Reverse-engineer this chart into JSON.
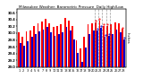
{
  "title": "Milwaukee Weather: Barometric Pressure  Daily High/Low",
  "title_fontsize": 3.0,
  "ylabel_fontsize": 2.8,
  "xlabel_fontsize": 2.5,
  "ylabel": "Inches",
  "background_color": "#ffffff",
  "bar_color_high": "#ff0000",
  "bar_color_low": "#0000cc",
  "days": [
    "1",
    "2",
    "3",
    "4",
    "5",
    "6",
    "7",
    "8",
    "9",
    "10",
    "11",
    "12",
    "13",
    "14",
    "15",
    "16",
    "17",
    "18",
    "19",
    "20",
    "21",
    "22",
    "23",
    "24",
    "25",
    "26",
    "27",
    "28"
  ],
  "highs": [
    30.02,
    29.88,
    30.05,
    30.08,
    30.22,
    30.28,
    30.35,
    30.42,
    30.3,
    30.18,
    30.2,
    30.25,
    30.45,
    30.38,
    30.2,
    29.78,
    29.55,
    29.88,
    30.25,
    30.3,
    30.32,
    30.38,
    30.22,
    30.2,
    30.25,
    30.32,
    30.28,
    30.12
  ],
  "lows": [
    29.7,
    29.62,
    29.75,
    29.88,
    29.98,
    30.05,
    30.1,
    30.18,
    30.02,
    29.92,
    29.98,
    30.02,
    30.18,
    30.08,
    29.82,
    29.42,
    29.15,
    29.58,
    29.98,
    30.08,
    30.08,
    30.15,
    29.9,
    29.92,
    29.98,
    30.1,
    30.02,
    29.82
  ],
  "ylim_min": 29.0,
  "ylim_max": 30.7,
  "yticks": [
    29.0,
    29.2,
    29.4,
    29.6,
    29.8,
    30.0,
    30.2,
    30.4,
    30.6
  ],
  "dashed_cols": [
    20,
    21,
    22,
    23
  ],
  "dot_highs": [
    20,
    21,
    22,
    23,
    27
  ],
  "dot_lows": [
    20,
    21,
    22,
    23,
    27
  ]
}
